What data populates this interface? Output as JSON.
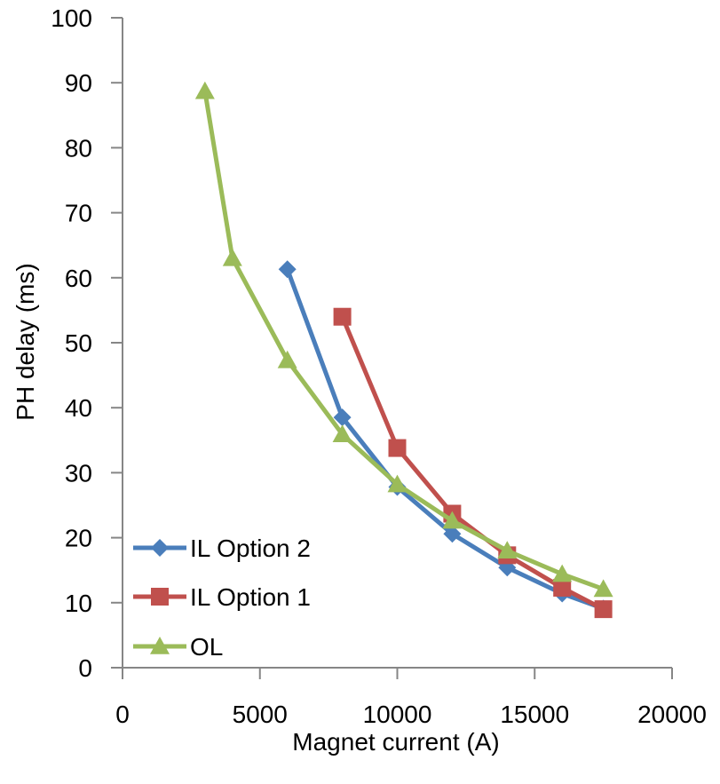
{
  "chart_data": {
    "type": "line",
    "title": "",
    "xlabel": "Magnet current (A)",
    "ylabel": "PH delay (ms)",
    "xlim": [
      0,
      20000
    ],
    "ylim": [
      0,
      100
    ],
    "x_ticks": [
      0,
      5000,
      10000,
      15000,
      20000
    ],
    "y_ticks": [
      0,
      10,
      20,
      30,
      40,
      50,
      60,
      70,
      80,
      90,
      100
    ],
    "grid": false,
    "legend_position": "bottom-left",
    "series": [
      {
        "name": "IL Option 2",
        "color": "#4a7ebb",
        "marker": "diamond",
        "points": [
          [
            6000,
            61.3
          ],
          [
            8000,
            38.5
          ],
          [
            10000,
            27.8
          ],
          [
            12000,
            20.6
          ],
          [
            14000,
            15.4
          ],
          [
            16000,
            11.4
          ],
          [
            17500,
            9.1
          ]
        ]
      },
      {
        "name": "IL Option 1",
        "color": "#c0504d",
        "marker": "square",
        "points": [
          [
            8000,
            54.0
          ],
          [
            10000,
            33.8
          ],
          [
            12000,
            23.7
          ],
          [
            14000,
            17.3
          ],
          [
            16000,
            12.3
          ],
          [
            17500,
            9.0
          ]
        ]
      },
      {
        "name": "OL",
        "color": "#9bbb59",
        "marker": "triangle",
        "points": [
          [
            3000,
            88.7
          ],
          [
            4000,
            63.0
          ],
          [
            6000,
            47.3
          ],
          [
            8000,
            35.9
          ],
          [
            10000,
            28.2
          ],
          [
            12000,
            22.6
          ],
          [
            14000,
            18.0
          ],
          [
            16000,
            14.4
          ],
          [
            17500,
            12.1
          ]
        ]
      }
    ]
  }
}
